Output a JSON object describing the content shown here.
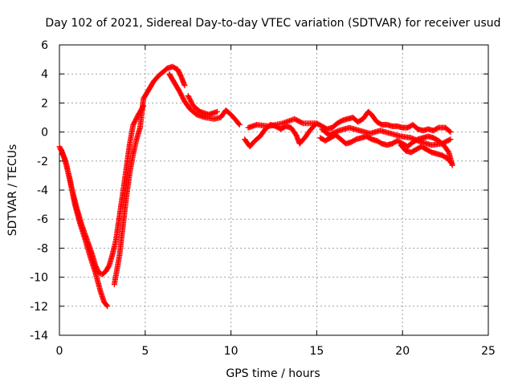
{
  "chart_data": {
    "type": "scatter",
    "title": "Day 102 of 2021, Sidereal Day-to-day VTEC variation (SDTVAR) for receiver usud",
    "xlabel": "GPS time / hours",
    "ylabel": "SDTVAR / TECUs",
    "xlim": [
      0,
      25
    ],
    "ylim": [
      -14,
      6
    ],
    "xticks": [
      0,
      5,
      10,
      15,
      20,
      25
    ],
    "yticks": [
      -14,
      -12,
      -10,
      -8,
      -6,
      -4,
      -2,
      0,
      2,
      4,
      6
    ],
    "grid": true,
    "marker": "+",
    "colors": {
      "series": "#ff0000",
      "grid": "#a0a0a0",
      "axis": "#000000"
    },
    "series": [
      {
        "name": "SDTVAR",
        "points": [
          [
            0.0,
            -1.0
          ],
          [
            0.3,
            -1.8
          ],
          [
            0.6,
            -3.2
          ],
          [
            0.9,
            -5.0
          ],
          [
            1.2,
            -6.3
          ],
          [
            1.5,
            -7.4
          ],
          [
            1.8,
            -8.6
          ],
          [
            2.1,
            -9.7
          ],
          [
            2.4,
            -11.0
          ],
          [
            2.6,
            -11.7
          ],
          [
            2.8,
            -12.0
          ],
          [
            0.1,
            -1.2
          ],
          [
            0.4,
            -2.2
          ],
          [
            0.7,
            -3.8
          ],
          [
            1.0,
            -5.2
          ],
          [
            1.3,
            -6.4
          ],
          [
            1.6,
            -7.4
          ],
          [
            1.9,
            -8.4
          ],
          [
            2.1,
            -9.2
          ],
          [
            2.3,
            -9.7
          ],
          [
            2.5,
            -9.8
          ],
          [
            2.7,
            -9.6
          ],
          [
            2.9,
            -9.2
          ],
          [
            3.1,
            -8.4
          ],
          [
            3.3,
            -7.4
          ],
          [
            3.5,
            -5.8
          ],
          [
            3.7,
            -4.2
          ],
          [
            3.9,
            -2.5
          ],
          [
            4.1,
            -0.8
          ],
          [
            4.3,
            0.5
          ],
          [
            4.6,
            1.2
          ],
          [
            4.9,
            1.8
          ],
          [
            3.2,
            -10.5
          ],
          [
            3.5,
            -8.5
          ],
          [
            3.7,
            -6.5
          ],
          [
            3.9,
            -4.5
          ],
          [
            4.1,
            -2.8
          ],
          [
            4.3,
            -1.5
          ],
          [
            4.5,
            -0.5
          ],
          [
            4.7,
            0.3
          ],
          [
            4.9,
            2.3
          ],
          [
            5.1,
            2.7
          ],
          [
            5.3,
            3.1
          ],
          [
            5.5,
            3.5
          ],
          [
            5.8,
            3.9
          ],
          [
            6.1,
            4.2
          ],
          [
            6.3,
            4.4
          ],
          [
            6.6,
            4.5
          ],
          [
            6.9,
            4.3
          ],
          [
            7.1,
            3.8
          ],
          [
            7.3,
            3.2
          ],
          [
            6.4,
            4.0
          ],
          [
            6.6,
            3.6
          ],
          [
            6.8,
            3.2
          ],
          [
            7.0,
            2.8
          ],
          [
            7.3,
            2.1
          ],
          [
            7.6,
            1.6
          ],
          [
            8.0,
            1.2
          ],
          [
            8.5,
            1.0
          ],
          [
            9.0,
            0.9
          ],
          [
            9.4,
            1.0
          ],
          [
            9.7,
            1.5
          ],
          [
            10.0,
            1.2
          ],
          [
            10.3,
            0.8
          ],
          [
            10.5,
            0.5
          ],
          [
            7.5,
            2.5
          ],
          [
            7.8,
            1.8
          ],
          [
            8.2,
            1.4
          ],
          [
            8.7,
            1.2
          ],
          [
            9.2,
            1.4
          ],
          [
            10.8,
            -0.5
          ],
          [
            11.1,
            -1.0
          ],
          [
            11.4,
            -0.6
          ],
          [
            11.7,
            -0.3
          ],
          [
            12.0,
            0.2
          ],
          [
            12.3,
            0.5
          ],
          [
            12.6,
            0.4
          ],
          [
            12.9,
            0.2
          ],
          [
            13.2,
            0.4
          ],
          [
            13.5,
            0.3
          ],
          [
            13.8,
            -0.2
          ],
          [
            14.0,
            -0.8
          ],
          [
            14.3,
            -0.4
          ],
          [
            14.6,
            0.1
          ],
          [
            14.9,
            0.5
          ],
          [
            11.0,
            0.3
          ],
          [
            11.5,
            0.5
          ],
          [
            12.2,
            0.4
          ],
          [
            13.0,
            0.6
          ],
          [
            13.7,
            0.9
          ],
          [
            14.2,
            0.6
          ],
          [
            15.0,
            0.6
          ],
          [
            15.3,
            0.4
          ],
          [
            15.6,
            0.2
          ],
          [
            15.9,
            0.3
          ],
          [
            16.2,
            0.6
          ],
          [
            16.5,
            0.8
          ],
          [
            16.8,
            0.9
          ],
          [
            17.1,
            1.0
          ],
          [
            17.4,
            0.7
          ],
          [
            17.7,
            0.9
          ],
          [
            18.0,
            1.4
          ],
          [
            18.2,
            1.2
          ],
          [
            18.5,
            0.7
          ],
          [
            18.8,
            0.5
          ],
          [
            19.1,
            0.5
          ],
          [
            19.4,
            0.4
          ],
          [
            19.7,
            0.4
          ],
          [
            20.0,
            0.3
          ],
          [
            20.3,
            0.3
          ],
          [
            20.6,
            0.5
          ],
          [
            20.9,
            0.2
          ],
          [
            21.2,
            0.1
          ],
          [
            21.5,
            0.2
          ],
          [
            21.8,
            0.1
          ],
          [
            22.1,
            0.3
          ],
          [
            22.5,
            0.3
          ],
          [
            22.8,
            0.0
          ],
          [
            15.2,
            -0.4
          ],
          [
            15.5,
            -0.6
          ],
          [
            15.8,
            -0.4
          ],
          [
            16.1,
            -0.2
          ],
          [
            16.4,
            -0.5
          ],
          [
            16.7,
            -0.8
          ],
          [
            17.0,
            -0.7
          ],
          [
            17.3,
            -0.5
          ],
          [
            17.6,
            -0.4
          ],
          [
            17.9,
            -0.3
          ],
          [
            18.2,
            -0.5
          ],
          [
            18.5,
            -0.6
          ],
          [
            18.8,
            -0.8
          ],
          [
            19.1,
            -0.9
          ],
          [
            19.4,
            -0.8
          ],
          [
            19.7,
            -0.6
          ],
          [
            20.0,
            -0.8
          ],
          [
            20.3,
            -1.0
          ],
          [
            20.6,
            -0.7
          ],
          [
            20.9,
            -0.5
          ],
          [
            21.2,
            -0.4
          ],
          [
            21.5,
            -0.3
          ],
          [
            21.8,
            -0.4
          ],
          [
            22.1,
            -0.6
          ],
          [
            22.4,
            -0.9
          ],
          [
            22.7,
            -1.4
          ],
          [
            22.9,
            -2.3
          ],
          [
            15.3,
            0.2
          ],
          [
            15.7,
            -0.2
          ],
          [
            16.3,
            0.1
          ],
          [
            16.9,
            0.3
          ],
          [
            17.5,
            0.1
          ],
          [
            18.1,
            -0.1
          ],
          [
            18.7,
            0.1
          ],
          [
            19.3,
            -0.1
          ],
          [
            19.9,
            -0.3
          ],
          [
            20.5,
            -0.4
          ],
          [
            21.1,
            -0.7
          ],
          [
            21.7,
            -0.9
          ],
          [
            22.3,
            -0.8
          ],
          [
            22.8,
            -0.5
          ],
          [
            19.9,
            -0.9
          ],
          [
            20.2,
            -1.3
          ],
          [
            20.5,
            -1.4
          ],
          [
            20.8,
            -1.2
          ],
          [
            21.1,
            -1.0
          ],
          [
            21.4,
            -1.2
          ],
          [
            21.7,
            -1.4
          ],
          [
            22.0,
            -1.5
          ],
          [
            22.3,
            -1.6
          ],
          [
            22.6,
            -1.8
          ],
          [
            22.9,
            -2.2
          ]
        ]
      }
    ]
  }
}
